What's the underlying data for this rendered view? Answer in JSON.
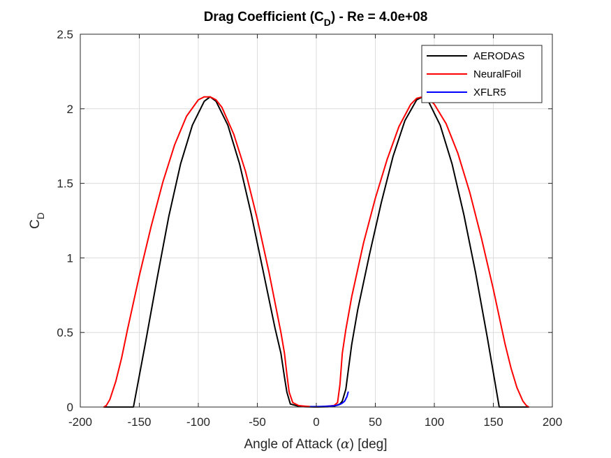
{
  "chart_data": {
    "type": "line",
    "title": {
      "prefix": "Drag Coefficient (C",
      "sub": "D",
      "suffix": ") - Re = 4.0e+08"
    },
    "xlabel": {
      "before": "Angle of Attack (",
      "symbol": "α",
      "after": ") [deg]"
    },
    "ylabel": {
      "main": "C",
      "sub": "D"
    },
    "xlim": [
      -200,
      200
    ],
    "ylim": [
      0,
      2.5
    ],
    "xticks": [
      -200,
      -150,
      -100,
      -50,
      0,
      50,
      100,
      150,
      200
    ],
    "xtick_labels": [
      "-200",
      "-150",
      "-100",
      "-50",
      "0",
      "50",
      "100",
      "150",
      "200"
    ],
    "yticks": [
      0,
      0.5,
      1,
      1.5,
      2,
      2.5
    ],
    "ytick_labels": [
      "0",
      "0.5",
      "1",
      "1.5",
      "2",
      "2.5"
    ],
    "grid": true,
    "legend_position": "top-right",
    "series": [
      {
        "name": "AERODAS",
        "color": "#000000",
        "x": [
          -180,
          -155,
          -145,
          -135,
          -125,
          -115,
          -105,
          -95,
          -90,
          -85,
          -75,
          -65,
          -55,
          -45,
          -35,
          -30,
          -27,
          -25,
          -22,
          -15,
          -10,
          0,
          10,
          15,
          20,
          22,
          25,
          27,
          30,
          35,
          45,
          55,
          65,
          75,
          85,
          90,
          95,
          105,
          115,
          125,
          135,
          145,
          155,
          160,
          180
        ],
        "y": [
          0.0,
          0.0,
          0.42,
          0.86,
          1.28,
          1.63,
          1.89,
          2.05,
          2.08,
          2.05,
          1.89,
          1.63,
          1.29,
          0.91,
          0.53,
          0.36,
          0.2,
          0.1,
          0.02,
          0.005,
          0.002,
          0.0,
          0.002,
          0.005,
          0.02,
          0.04,
          0.12,
          0.24,
          0.42,
          0.65,
          1.02,
          1.37,
          1.68,
          1.92,
          2.06,
          2.08,
          2.05,
          1.89,
          1.63,
          1.29,
          0.9,
          0.46,
          0.0,
          0.0,
          0.0
        ]
      },
      {
        "name": "NeuralFoil",
        "color": "#ff0000",
        "x": [
          -180,
          -178,
          -175,
          -170,
          -165,
          -160,
          -150,
          -140,
          -130,
          -120,
          -110,
          -100,
          -95,
          -90,
          -85,
          -80,
          -70,
          -60,
          -50,
          -40,
          -30,
          -27,
          -25,
          -23,
          -20,
          -15,
          -10,
          -5,
          0,
          5,
          10,
          15,
          18,
          20,
          22,
          25,
          30,
          40,
          50,
          60,
          70,
          80,
          85,
          90,
          95,
          100,
          110,
          120,
          130,
          140,
          150,
          160,
          165,
          170,
          175,
          178,
          180
        ],
        "y": [
          0.0,
          0.01,
          0.05,
          0.17,
          0.33,
          0.52,
          0.88,
          1.21,
          1.51,
          1.76,
          1.95,
          2.06,
          2.08,
          2.08,
          2.06,
          2.01,
          1.83,
          1.58,
          1.26,
          0.9,
          0.5,
          0.36,
          0.22,
          0.1,
          0.03,
          0.01,
          0.006,
          0.003,
          0.002,
          0.003,
          0.006,
          0.01,
          0.03,
          0.15,
          0.36,
          0.52,
          0.74,
          1.1,
          1.4,
          1.66,
          1.88,
          2.03,
          2.07,
          2.08,
          2.07,
          2.03,
          1.9,
          1.7,
          1.44,
          1.13,
          0.79,
          0.42,
          0.26,
          0.13,
          0.04,
          0.01,
          0.0
        ]
      },
      {
        "name": "XFLR5",
        "color": "#0000ff",
        "x": [
          -5,
          0,
          5,
          10,
          15,
          18,
          20,
          22,
          24,
          26,
          27
        ],
        "y": [
          0.003,
          0.003,
          0.004,
          0.006,
          0.008,
          0.012,
          0.018,
          0.026,
          0.04,
          0.07,
          0.1
        ]
      }
    ]
  }
}
